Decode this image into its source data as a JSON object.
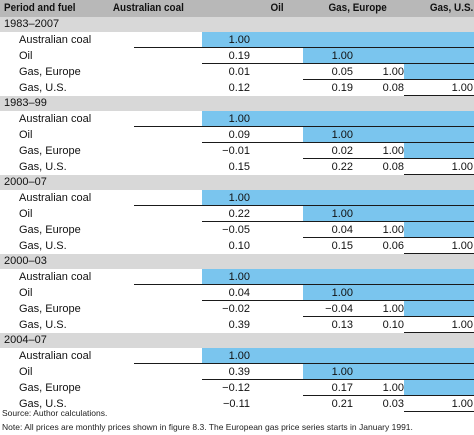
{
  "header": {
    "period_and_fuel": "Period and fuel",
    "columns": [
      "Australian coal",
      "Oil",
      "Gas, Europe",
      "Gas, U.S."
    ]
  },
  "highlight_color": "#7ac5ee",
  "blocks": [
    {
      "period": "1983–2007",
      "rows": [
        {
          "fuel": "Australian coal",
          "values": [
            "1.00"
          ]
        },
        {
          "fuel": "Oil",
          "values": [
            "0.19",
            "1.00"
          ]
        },
        {
          "fuel": "Gas, Europe",
          "values": [
            "0.01",
            "0.05",
            "1.00"
          ]
        },
        {
          "fuel": "Gas, U.S.",
          "values": [
            "0.12",
            "0.19",
            "0.08",
            "1.00"
          ]
        }
      ]
    },
    {
      "period": "1983–99",
      "rows": [
        {
          "fuel": "Australian coal",
          "values": [
            "1.00"
          ]
        },
        {
          "fuel": "Oil",
          "values": [
            "0.09",
            "1.00"
          ]
        },
        {
          "fuel": "Gas, Europe",
          "values": [
            "−0.01",
            "0.02",
            "1.00"
          ]
        },
        {
          "fuel": "Gas, U.S.",
          "values": [
            "0.15",
            "0.22",
            "0.08",
            "1.00"
          ]
        }
      ]
    },
    {
      "period": "2000–07",
      "rows": [
        {
          "fuel": "Australian coal",
          "values": [
            "1.00"
          ]
        },
        {
          "fuel": "Oil",
          "values": [
            "0.22",
            "1.00"
          ]
        },
        {
          "fuel": "Gas, Europe",
          "values": [
            "−0.05",
            "0.04",
            "1.00"
          ]
        },
        {
          "fuel": "Gas, U.S.",
          "values": [
            "0.10",
            "0.15",
            "0.06",
            "1.00"
          ]
        }
      ]
    },
    {
      "period": "2000–03",
      "rows": [
        {
          "fuel": "Australian coal",
          "values": [
            "1.00"
          ]
        },
        {
          "fuel": "Oil",
          "values": [
            "0.04",
            "1.00"
          ]
        },
        {
          "fuel": "Gas, Europe",
          "values": [
            "−0.02",
            "−0.04",
            "1.00"
          ]
        },
        {
          "fuel": "Gas, U.S.",
          "values": [
            "0.39",
            "0.13",
            "0.10",
            "1.00"
          ]
        }
      ]
    },
    {
      "period": "2004–07",
      "rows": [
        {
          "fuel": "Australian coal",
          "values": [
            "1.00"
          ]
        },
        {
          "fuel": "Oil",
          "values": [
            "0.39",
            "1.00"
          ]
        },
        {
          "fuel": "Gas, Europe",
          "values": [
            "−0.12",
            "0.17",
            "1.00"
          ]
        },
        {
          "fuel": "Gas, U.S.",
          "values": [
            "−0.11",
            "0.21",
            "0.03",
            "1.00"
          ]
        }
      ]
    }
  ],
  "footnotes": {
    "source": "Source: Author calculations.",
    "note": "Note: All prices are monthly prices shown in figure 8.3. The European gas price series starts in January 1991."
  }
}
